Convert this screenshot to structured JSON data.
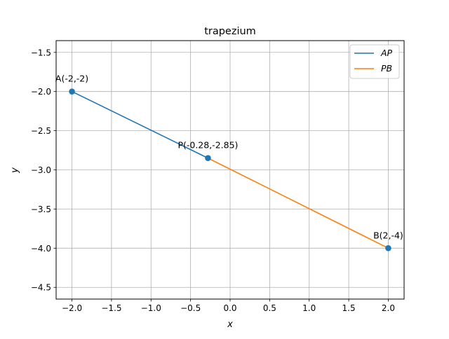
{
  "chart_data": {
    "type": "line",
    "title": "trapezium",
    "xlabel": "x",
    "ylabel": "y",
    "xlim": [
      -2.2,
      2.2
    ],
    "ylim": [
      -4.65,
      -1.35
    ],
    "grid": true,
    "legend_position": "top-right",
    "x_ticks": [
      -2.0,
      -1.5,
      -1.0,
      -0.5,
      0.0,
      0.5,
      1.0,
      1.5,
      2.0
    ],
    "x_tick_labels": [
      "−2.0",
      "−1.5",
      "−1.0",
      "−0.5",
      "0.0",
      "0.5",
      "1.0",
      "1.5",
      "2.0"
    ],
    "y_ticks": [
      -4.5,
      -4.0,
      -3.5,
      -3.0,
      -2.5,
      -2.0,
      -1.5
    ],
    "y_tick_labels": [
      "−4.5",
      "−4.0",
      "−3.5",
      "−3.0",
      "−2.5",
      "−2.0",
      "−1.5"
    ],
    "series": [
      {
        "name": "AP",
        "color": "#1f77b4",
        "x": [
          -2,
          -0.28
        ],
        "y": [
          -2,
          -2.85
        ]
      },
      {
        "name": "PB",
        "color": "#ff7f0e",
        "x": [
          -0.28,
          2
        ],
        "y": [
          -2.85,
          -4
        ]
      }
    ],
    "points": [
      {
        "label": "A(-2,-2)",
        "x": -2,
        "y": -2
      },
      {
        "label": "P(-0.28,-2.85)",
        "x": -0.28,
        "y": -2.85
      },
      {
        "label": "B(2,-4)",
        "x": 2,
        "y": -4
      }
    ],
    "marker_color": "#1f77b4"
  }
}
